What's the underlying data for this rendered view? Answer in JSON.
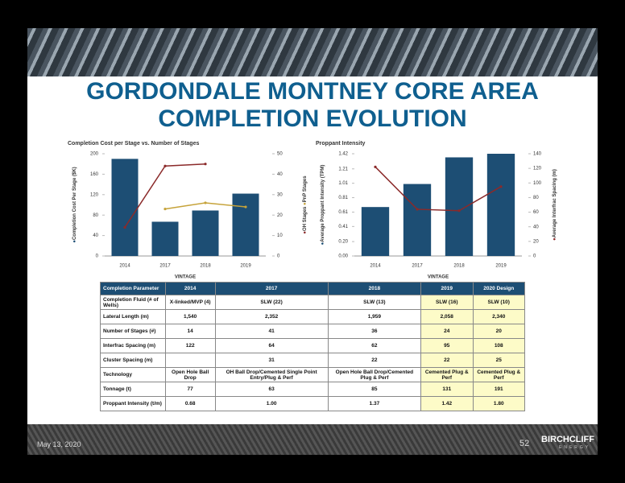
{
  "title_lines": [
    "GORDONDALE MONTNEY CORE AREA",
    "COMPLETION EVOLUTION"
  ],
  "chart_data": [
    {
      "type": "bar",
      "title": "Completion Cost per Stage vs. Number of Stages",
      "xlabel": "VINTAGE",
      "categories": [
        "2014",
        "2017",
        "2018",
        "2019"
      ],
      "ylim": [
        0,
        200
      ],
      "yticks": [
        0,
        40,
        80,
        120,
        160,
        200
      ],
      "y2lim": [
        0,
        50
      ],
      "y2ticks": [
        0,
        10,
        20,
        30,
        40,
        50
      ],
      "series": [
        {
          "name": "Completion Cost Per Stage ($K)",
          "type": "bar",
          "color": "#1d4e74",
          "values": [
            190,
            67,
            89,
            122
          ]
        },
        {
          "name": "OH Stages",
          "type": "line",
          "axis": "y2",
          "color": "#8b2a2a",
          "values": [
            14,
            44,
            45,
            null
          ]
        },
        {
          "name": "PnP Stages",
          "type": "line",
          "axis": "y2",
          "color": "#c6a33a",
          "values": [
            null,
            23,
            26,
            24
          ]
        }
      ]
    },
    {
      "type": "bar",
      "title": "Proppant Intensity",
      "xlabel": "VINTAGE",
      "categories": [
        "2014",
        "2017",
        "2018",
        "2019"
      ],
      "ylim": [
        0,
        1.42
      ],
      "yticks": [
        {
          "value": 0,
          "label": "0.00"
        },
        {
          "value": 0.2,
          "label": "0.20"
        },
        0.41,
        0.61,
        0.81,
        1.01,
        1.21,
        1.42
      ],
      "y2lim": [
        0,
        140
      ],
      "y2ticks": [
        0,
        20,
        40,
        60,
        80,
        100,
        120,
        140
      ],
      "series": [
        {
          "name": "Average Proppant Intensity (TPM)",
          "type": "bar",
          "color": "#1d4e74",
          "values": [
            0.68,
            1.0,
            1.37,
            1.42
          ]
        },
        {
          "name": "Average Interfrac Spacing (m)",
          "type": "line",
          "axis": "y2",
          "color": "#8b2a2a",
          "values": [
            122,
            64,
            62,
            95
          ]
        }
      ]
    }
  ],
  "table": {
    "header": [
      "Completion Parameter",
      "2014",
      "2017",
      "2018",
      "2019",
      "2020 Design"
    ],
    "rows": [
      [
        "Completion Fluid (# of Wells)",
        "X-linked/MVP (4)",
        "SLW (22)",
        "SLW (13)",
        "SLW (16)",
        "SLW (10)"
      ],
      [
        "Lateral Length (m)",
        "1,540",
        "2,352",
        "1,959",
        "2,058",
        "2,340"
      ],
      [
        "Number of Stages (#)",
        "14",
        "41",
        "36",
        "24",
        "20"
      ],
      [
        "Interfrac Spacing (m)",
        "122",
        "64",
        "62",
        "95",
        "108"
      ],
      [
        "Cluster Spacing (m)",
        "",
        "31",
        "22",
        "22",
        "25"
      ],
      [
        "Technology",
        "Open Hole Ball Drop",
        "OH Ball Drop/Cemented Single Point Entry/Plug & Perf",
        "Open Hole Ball Drop/Cemented Plug & Perf",
        "Cemented Plug & Perf",
        "Cemented Plug & Perf"
      ],
      [
        "Tonnage (t)",
        "77",
        "63",
        "85",
        "131",
        "191"
      ],
      [
        "Proppant Intensity (t/m)",
        "0.68",
        "1.00",
        "1.37",
        "1.42",
        "1.80"
      ]
    ]
  },
  "footer": {
    "date": "May 13, 2020",
    "page": "52",
    "logo": "BIRCHCLIFF",
    "logo_sub": "ENERGY"
  }
}
